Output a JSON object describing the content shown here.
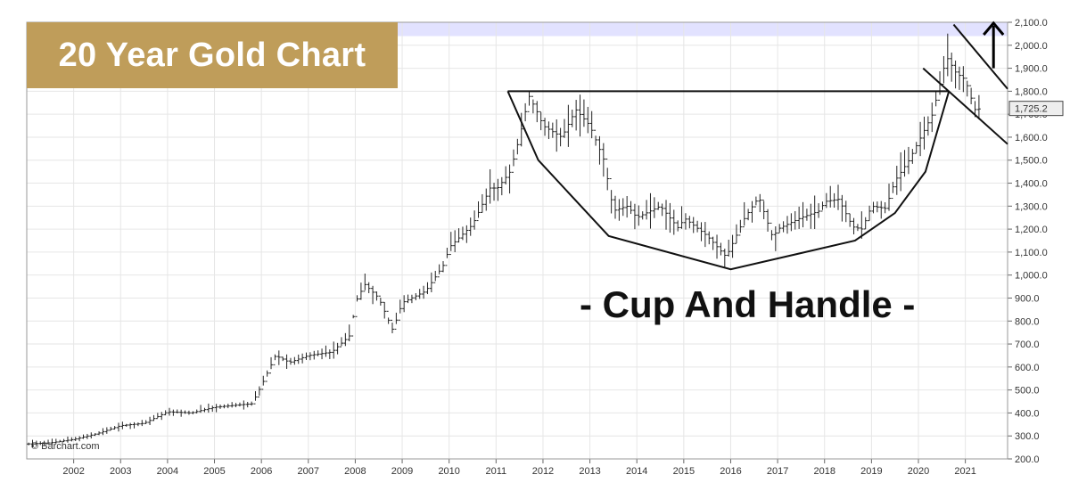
{
  "title": "20 Year Gold Chart",
  "pattern_label": "- Cup And Handle -",
  "watermark": "© Barchart.com",
  "last_price_label": "1,725.2",
  "colors": {
    "title_bg": "#bf9d5a",
    "title_text": "#ffffff",
    "band": "#e2e2ff",
    "grid": "#e6e6e6",
    "bars": "#222222",
    "annotations": "#111111",
    "price_tag": "#eeeeee"
  },
  "icons": {
    "trend_arrow": "up-arrow-icon"
  },
  "chart_data": {
    "type": "ohlc-bar",
    "ylim": [
      200,
      2100
    ],
    "xlim": [
      2001.0,
      2021.9
    ],
    "y_ticks": [
      200,
      300,
      400,
      500,
      600,
      700,
      800,
      900,
      1000,
      1100,
      1200,
      1300,
      1400,
      1500,
      1600,
      1700,
      1800,
      1900,
      2000,
      2100
    ],
    "y_tick_labels": [
      "200.0",
      "300.0",
      "400.0",
      "500.0",
      "600.0",
      "700.0",
      "800.0",
      "900.0",
      "1,000.0",
      "1,100.0",
      "1,200.0",
      "1,300.0",
      "1,400.0",
      "1,500.0",
      "1,600.0",
      "1,700.0",
      "1,800.0",
      "1,900.0",
      "2,000.0",
      "2,100.0"
    ],
    "x_ticks": [
      2002,
      2003,
      2004,
      2005,
      2006,
      2007,
      2008,
      2009,
      2010,
      2011,
      2012,
      2013,
      2014,
      2015,
      2016,
      2017,
      2018,
      2019,
      2020,
      2021
    ],
    "x_tick_labels": [
      "2002",
      "2003",
      "2004",
      "2005",
      "2006",
      "2007",
      "2008",
      "2009",
      "2010",
      "2011",
      "2012",
      "2013",
      "2014",
      "2015",
      "2016",
      "2017",
      "2018",
      "2019",
      "2020",
      "2021"
    ],
    "grid": true,
    "y_axis_side": "right",
    "band": {
      "from": 2040,
      "to": 2100
    },
    "last_price": 1725.2,
    "price_path": [
      [
        2001.0,
        265
      ],
      [
        2001.5,
        270
      ],
      [
        2002.0,
        285
      ],
      [
        2002.5,
        310
      ],
      [
        2003.0,
        345
      ],
      [
        2003.5,
        355
      ],
      [
        2004.0,
        405
      ],
      [
        2004.5,
        400
      ],
      [
        2005.0,
        425
      ],
      [
        2005.5,
        435
      ],
      [
        2005.8,
        440
      ],
      [
        2006.0,
        520
      ],
      [
        2006.3,
        650
      ],
      [
        2006.6,
        620
      ],
      [
        2007.0,
        650
      ],
      [
        2007.5,
        665
      ],
      [
        2007.9,
        740
      ],
      [
        2008.0,
        880
      ],
      [
        2008.2,
        960
      ],
      [
        2008.5,
        900
      ],
      [
        2008.8,
        760
      ],
      [
        2009.0,
        880
      ],
      [
        2009.5,
        930
      ],
      [
        2009.9,
        1050
      ],
      [
        2010.0,
        1120
      ],
      [
        2010.5,
        1220
      ],
      [
        2010.9,
        1390
      ],
      [
        2011.0,
        1370
      ],
      [
        2011.3,
        1450
      ],
      [
        2011.5,
        1600
      ],
      [
        2011.7,
        1780
      ],
      [
        2011.9,
        1700
      ],
      [
        2012.0,
        1650
      ],
      [
        2012.4,
        1600
      ],
      [
        2012.7,
        1720
      ],
      [
        2013.0,
        1650
      ],
      [
        2013.3,
        1500
      ],
      [
        2013.5,
        1280
      ],
      [
        2013.8,
        1300
      ],
      [
        2014.0,
        1250
      ],
      [
        2014.5,
        1300
      ],
      [
        2014.9,
        1200
      ],
      [
        2015.0,
        1250
      ],
      [
        2015.5,
        1170
      ],
      [
        2015.9,
        1080
      ],
      [
        2016.0,
        1120
      ],
      [
        2016.3,
        1250
      ],
      [
        2016.6,
        1340
      ],
      [
        2016.9,
        1160
      ],
      [
        2017.0,
        1200
      ],
      [
        2017.5,
        1250
      ],
      [
        2017.9,
        1280
      ],
      [
        2018.0,
        1320
      ],
      [
        2018.3,
        1330
      ],
      [
        2018.6,
        1210
      ],
      [
        2018.8,
        1200
      ],
      [
        2019.0,
        1300
      ],
      [
        2019.3,
        1290
      ],
      [
        2019.5,
        1410
      ],
      [
        2019.8,
        1500
      ],
      [
        2020.0,
        1580
      ],
      [
        2020.3,
        1700
      ],
      [
        2020.6,
        1950
      ],
      [
        2020.8,
        1880
      ],
      [
        2021.0,
        1850
      ],
      [
        2021.2,
        1720
      ],
      [
        2021.35,
        1725
      ]
    ],
    "annotations": {
      "cup_curve": [
        [
          2011.25,
          1800
        ],
        [
          2011.9,
          1500
        ],
        [
          2013.4,
          1170
        ],
        [
          2016.0,
          1025
        ],
        [
          2018.65,
          1150
        ],
        [
          2019.5,
          1270
        ],
        [
          2020.15,
          1450
        ],
        [
          2020.65,
          1800
        ]
      ],
      "rim_line": [
        [
          2011.25,
          1800
        ],
        [
          2020.65,
          1800
        ]
      ],
      "handle_upper": [
        [
          2020.75,
          2090
        ],
        [
          2021.9,
          1810
        ]
      ],
      "handle_lower": [
        [
          2020.1,
          1900
        ],
        [
          2021.9,
          1570
        ]
      ],
      "breakout_arrow": {
        "x": 2021.6,
        "from": 1900,
        "to": 2100
      }
    }
  }
}
